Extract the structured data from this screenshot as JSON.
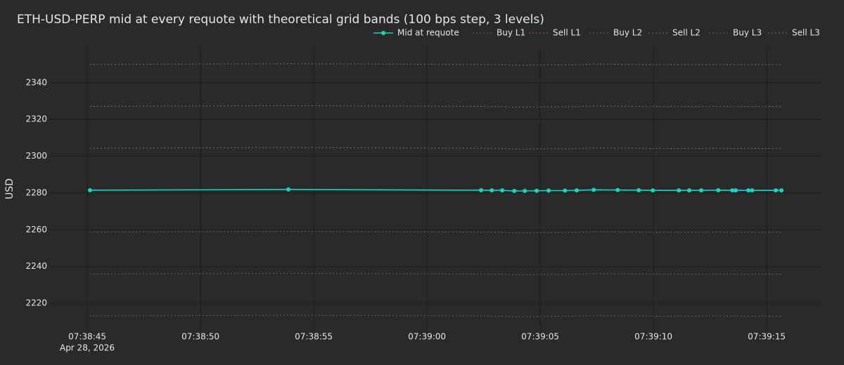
{
  "chart_data": {
    "type": "line",
    "title": "ETH-USD-PERP mid at every requote with theoretical grid bands (100 bps step, 3 levels)",
    "y_label": "USD",
    "x_date_label": "Apr 28, 2026",
    "x": [
      "2026-04-28 07:38:45.12",
      "2026-04-28 07:38:53.88",
      "2026-04-28 07:39:02.39",
      "2026-04-28 07:39:02.86",
      "2026-04-28 07:39:03.32",
      "2026-04-28 07:39:03.85",
      "2026-04-28 07:39:04.32",
      "2026-04-28 07:39:04.84",
      "2026-04-28 07:39:05.37",
      "2026-04-28 07:39:06.09",
      "2026-04-28 07:39:06.61",
      "2026-04-28 07:39:07.36",
      "2026-04-28 07:39:08.42",
      "2026-04-28 07:39:09.35",
      "2026-04-28 07:39:09.97",
      "2026-04-28 07:39:11.12",
      "2026-04-28 07:39:11.58",
      "2026-04-28 07:39:12.11",
      "2026-04-28 07:39:12.86",
      "2026-04-28 07:39:13.48",
      "2026-04-28 07:39:13.63",
      "2026-04-28 07:39:14.19",
      "2026-04-28 07:39:14.35",
      "2026-04-28 07:39:15.40",
      "2026-04-28 07:39:15.65"
    ],
    "series": [
      {
        "name": "Mid at requote",
        "color": "#19d3c5",
        "dash": "solid",
        "markers": true,
        "values": [
          2281.5,
          2281.9,
          2281.5,
          2281.4,
          2281.4,
          2281.1,
          2281.1,
          2281.2,
          2281.3,
          2281.3,
          2281.4,
          2281.7,
          2281.6,
          2281.5,
          2281.4,
          2281.4,
          2281.4,
          2281.4,
          2281.5,
          2281.4,
          2281.4,
          2281.4,
          2281.4,
          2281.4,
          2281.4
        ]
      },
      {
        "name": "Buy L1",
        "color": "#3f6f8c",
        "dash": "dot",
        "markers": false,
        "values": [
          2258.7,
          2259.1,
          2258.7,
          2258.6,
          2258.6,
          2258.3,
          2258.3,
          2258.4,
          2258.5,
          2258.5,
          2258.6,
          2258.9,
          2258.8,
          2258.7,
          2258.6,
          2258.6,
          2258.6,
          2258.6,
          2258.7,
          2258.6,
          2258.6,
          2258.6,
          2258.6,
          2258.6,
          2258.6
        ]
      },
      {
        "name": "Sell L1",
        "color": "#a85a5c",
        "dash": "dot",
        "markers": false,
        "values": [
          2304.3,
          2304.7,
          2304.3,
          2304.2,
          2304.2,
          2303.9,
          2303.9,
          2304.0,
          2304.1,
          2304.1,
          2304.2,
          2304.5,
          2304.4,
          2304.3,
          2304.2,
          2304.2,
          2304.2,
          2304.2,
          2304.3,
          2304.2,
          2304.2,
          2304.2,
          2304.2,
          2304.2,
          2304.2
        ]
      },
      {
        "name": "Buy L2",
        "color": "#3f6f8c",
        "dash": "dot",
        "markers": false,
        "values": [
          2235.9,
          2236.3,
          2235.9,
          2235.8,
          2235.8,
          2235.5,
          2235.5,
          2235.6,
          2235.7,
          2235.7,
          2235.8,
          2236.1,
          2236.0,
          2235.9,
          2235.8,
          2235.8,
          2235.8,
          2235.8,
          2235.9,
          2235.8,
          2235.8,
          2235.8,
          2235.8,
          2235.8,
          2235.8
        ]
      },
      {
        "name": "Sell L2",
        "color": "#a85a5c",
        "dash": "dot",
        "markers": false,
        "values": [
          2327.1,
          2327.5,
          2327.1,
          2327.0,
          2327.0,
          2326.7,
          2326.7,
          2326.8,
          2326.9,
          2326.9,
          2327.0,
          2327.3,
          2327.2,
          2327.1,
          2327.0,
          2327.0,
          2327.0,
          2327.0,
          2327.1,
          2327.0,
          2327.0,
          2327.0,
          2327.0,
          2327.0,
          2327.0
        ]
      },
      {
        "name": "Buy L3",
        "color": "#3f6f8c",
        "dash": "dot",
        "markers": false,
        "values": [
          2213.1,
          2213.5,
          2213.1,
          2213.0,
          2213.0,
          2212.7,
          2212.7,
          2212.8,
          2212.9,
          2212.9,
          2213.0,
          2213.3,
          2213.2,
          2213.1,
          2213.0,
          2213.0,
          2213.0,
          2213.0,
          2213.1,
          2213.0,
          2213.0,
          2213.0,
          2213.0,
          2213.0,
          2213.0
        ]
      },
      {
        "name": "Sell L3",
        "color": "#a85a5c",
        "dash": "dot",
        "markers": false,
        "values": [
          2349.9,
          2350.3,
          2349.9,
          2349.8,
          2349.8,
          2349.5,
          2349.5,
          2349.6,
          2349.7,
          2349.7,
          2349.8,
          2350.1,
          2350.0,
          2349.9,
          2349.8,
          2349.8,
          2349.8,
          2349.8,
          2349.9,
          2349.8,
          2349.8,
          2349.8,
          2349.8,
          2349.8,
          2349.8
        ]
      }
    ],
    "xlim": [
      "2026-04-28 07:38:43.32",
      "2026-04-28 07:39:17.48"
    ],
    "xticks": [
      {
        "value": "2026-04-28 07:38:45",
        "label": "07:38:45"
      },
      {
        "value": "2026-04-28 07:38:50",
        "label": "07:38:50"
      },
      {
        "value": "2026-04-28 07:38:55",
        "label": "07:38:55"
      },
      {
        "value": "2026-04-28 07:39:00",
        "label": "07:39:00"
      },
      {
        "value": "2026-04-28 07:39:05",
        "label": "07:39:05"
      },
      {
        "value": "2026-04-28 07:39:10",
        "label": "07:39:10"
      },
      {
        "value": "2026-04-28 07:39:15",
        "label": "07:39:15"
      }
    ],
    "ylim": [
      2205.5,
      2359
    ],
    "yticks": [
      2220,
      2240,
      2260,
      2280,
      2300,
      2320,
      2340
    ],
    "grid": true,
    "legend": "top-right"
  }
}
